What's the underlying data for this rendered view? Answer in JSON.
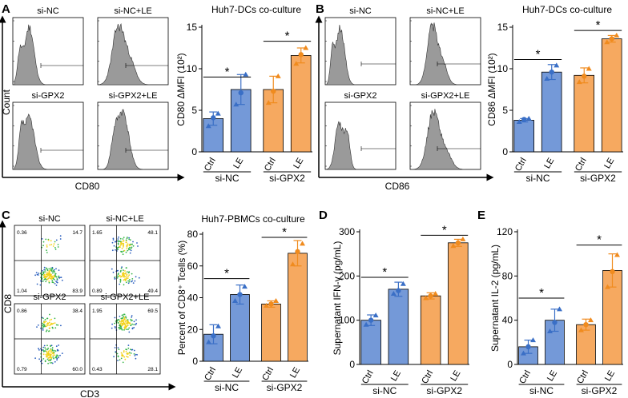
{
  "colors": {
    "nc": "#7499d8",
    "nc_dot": "#3a6fc6",
    "gpx": "#f6a960",
    "gpx_dot": "#f08b1e",
    "hist_fill": "#9a9a9a",
    "flow_fill": "#ffffff"
  },
  "panels": {
    "A": {
      "letter": "A",
      "hist_titles": [
        "si-NC",
        "si-NC+LE",
        "si-GPX2",
        "si-GPX2+LE"
      ],
      "y_label": "Count",
      "x_label": "CD80"
    },
    "B": {
      "letter": "B",
      "hist_titles": [
        "si-NC",
        "si-NC+LE",
        "si-GPX2",
        "si-GPX2+LE"
      ],
      "x_label": "CD86"
    },
    "C": {
      "letter": "C",
      "flow_titles": [
        "si-NC",
        "si-NC+LE",
        "si-GPX2",
        "si-GPX2+LE"
      ],
      "y_label": "CD8",
      "x_label": "CD3",
      "quadrants": [
        {
          "ul": "0.36",
          "ur": "14.7",
          "ll": "1.04",
          "lr": "83.9"
        },
        {
          "ul": "1.65",
          "ur": "48.1",
          "ll": "0.89",
          "lr": "49.4"
        },
        {
          "ul": "0.86",
          "ur": "38.4",
          "ll": "0.79",
          "lr": "60.0"
        },
        {
          "ul": "1.95",
          "ur": "69.5",
          "ll": "0.43",
          "lr": "28.1"
        }
      ]
    },
    "D": {
      "letter": "D"
    },
    "E": {
      "letter": "E"
    }
  },
  "chart_data": [
    {
      "id": "A",
      "type": "bar",
      "title": "Huh7-DCs co-culture",
      "ylabel": "CD80 ΔMFI (10²)",
      "ylim": [
        0,
        15
      ],
      "yticks": [
        0,
        5,
        10,
        15
      ],
      "categories": [
        "Ctrl",
        "LE",
        "Ctrl",
        "LE"
      ],
      "groups": [
        "si-NC",
        "si-GPX2"
      ],
      "values": [
        4.0,
        7.5,
        7.5,
        11.6
      ],
      "errors": [
        0.8,
        1.8,
        1.6,
        0.9
      ],
      "points": [
        [
          3.1,
          4.1,
          4.6
        ],
        [
          5.7,
          7.1,
          9.3
        ],
        [
          5.9,
          7.3,
          9.1
        ],
        [
          10.6,
          11.7,
          12.5
        ]
      ],
      "sig": [
        {
          "a": 0,
          "b": 1,
          "y": 9.0,
          "label": "*"
        },
        {
          "a": 2,
          "b": 3,
          "y": 13.3,
          "label": "*"
        }
      ]
    },
    {
      "id": "B",
      "type": "bar",
      "title": "Huh7-DCs co-culture",
      "ylabel": "CD86 ΔMFI (10²)",
      "ylim": [
        0,
        15
      ],
      "yticks": [
        0,
        5,
        10,
        15
      ],
      "categories": [
        "Ctrl",
        "LE",
        "Ctrl",
        "LE"
      ],
      "groups": [
        "si-NC",
        "si-GPX2"
      ],
      "values": [
        3.8,
        9.6,
        9.2,
        13.6
      ],
      "errors": [
        0.2,
        0.9,
        0.9,
        0.4
      ],
      "points": [
        [
          3.6,
          3.9,
          4.0
        ],
        [
          8.8,
          9.6,
          10.4
        ],
        [
          8.4,
          9.1,
          10.0
        ],
        [
          13.2,
          13.6,
          14.0
        ]
      ],
      "sig": [
        {
          "a": 0,
          "b": 1,
          "y": 11.1,
          "label": "*"
        },
        {
          "a": 2,
          "b": 3,
          "y": 14.6,
          "label": "*"
        }
      ]
    },
    {
      "id": "C",
      "type": "bar",
      "title": "Huh7-PBMCs co-culture",
      "ylabel": "Percent of CD8⁺ Tcells (%)",
      "ylim": [
        0,
        80
      ],
      "yticks": [
        0,
        20,
        40,
        60,
        80
      ],
      "categories": [
        "Ctrl",
        "LE",
        "Ctrl",
        "LE"
      ],
      "groups": [
        "si-NC",
        "si-GPX2"
      ],
      "values": [
        17,
        42,
        36,
        68
      ],
      "errors": [
        6,
        6,
        2,
        8
      ],
      "points": [
        [
          12,
          16,
          22
        ],
        [
          38,
          42,
          47
        ],
        [
          35,
          36,
          38
        ],
        [
          61,
          69,
          74
        ]
      ],
      "sig": [
        {
          "a": 0,
          "b": 1,
          "y": 52,
          "label": "*"
        },
        {
          "a": 2,
          "b": 3,
          "y": 78,
          "label": "*"
        }
      ]
    },
    {
      "id": "D",
      "type": "bar",
      "title": "",
      "ylabel": "Supernatant IFN-γ (pg/mL)",
      "ylim": [
        0,
        300
      ],
      "yticks": [
        0,
        100,
        200,
        300
      ],
      "categories": [
        "Ctrl",
        "LE",
        "Ctrl",
        "LE"
      ],
      "groups": [
        "si-NC",
        "si-GPX2"
      ],
      "values": [
        100,
        170,
        155,
        275
      ],
      "errors": [
        12,
        16,
        7,
        8
      ],
      "points": [
        [
          90,
          100,
          111
        ],
        [
          160,
          167,
          182
        ],
        [
          150,
          155,
          160
        ],
        [
          268,
          275,
          283
        ]
      ],
      "sig": [
        {
          "a": 0,
          "b": 1,
          "y": 197,
          "label": "*"
        },
        {
          "a": 2,
          "b": 3,
          "y": 292,
          "label": "*"
        }
      ]
    },
    {
      "id": "E",
      "type": "bar",
      "title": "",
      "ylabel": "Supernatant IL-2 (pg/mL)",
      "ylim": [
        0,
        120
      ],
      "yticks": [
        0,
        40,
        80,
        120
      ],
      "categories": [
        "Ctrl",
        "LE",
        "Ctrl",
        "LE"
      ],
      "groups": [
        "si-NC",
        "si-GPX2"
      ],
      "values": [
        16,
        40,
        36,
        85
      ],
      "errors": [
        6,
        10,
        5,
        15
      ],
      "points": [
        [
          10,
          16,
          22
        ],
        [
          30,
          38,
          50
        ],
        [
          31,
          36,
          40
        ],
        [
          70,
          84,
          99
        ]
      ],
      "sig": [
        {
          "a": 0,
          "b": 1,
          "y": 60,
          "label": "*"
        },
        {
          "a": 2,
          "b": 3,
          "y": 108,
          "label": "*"
        }
      ]
    }
  ]
}
